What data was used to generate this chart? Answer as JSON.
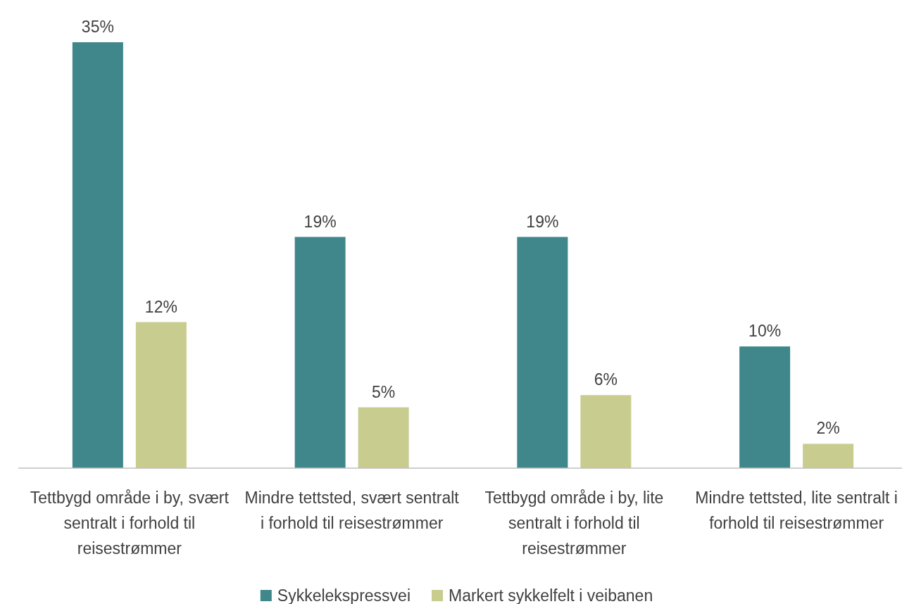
{
  "chart_data": {
    "type": "bar",
    "categories": [
      "Tettbygd område i by, svært sentralt i forhold til reisestrømmer",
      "Mindre tettsted, svært sentralt i forhold til reisestrømmer",
      "Tettbygd område i by, lite sentralt i forhold til reisestrømmer",
      "Mindre tettsted, lite sentralt i forhold til reisestrømmer"
    ],
    "series": [
      {
        "name": "Sykkelekspressvei",
        "color": "#3f878a",
        "values": [
          35,
          19,
          19,
          10
        ],
        "value_labels": [
          "35%",
          "19%",
          "19%",
          "10%"
        ]
      },
      {
        "name": "Markert sykkelfelt i veibanen",
        "color": "#c8cc8f",
        "values": [
          12,
          5,
          6,
          2
        ],
        "value_labels": [
          "12%",
          "5%",
          "6%",
          "2%"
        ]
      }
    ],
    "legend": "bottom"
  }
}
